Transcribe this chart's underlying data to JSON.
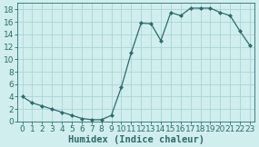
{
  "x": [
    0,
    1,
    2,
    3,
    4,
    5,
    6,
    7,
    8,
    9,
    10,
    11,
    12,
    13,
    14,
    15,
    16,
    17,
    18,
    19,
    20,
    21,
    22,
    23
  ],
  "y": [
    4,
    3,
    2.5,
    2,
    1.5,
    1,
    0.5,
    0.3,
    0.3,
    1,
    5.5,
    11,
    15.8,
    15.7,
    13,
    17.5,
    17,
    18.2,
    18.2,
    18.2,
    17.5,
    17,
    14.5,
    12.2
  ],
  "xlabel": "Humidex (Indice chaleur)",
  "ylabel": "",
  "xlim": [
    -0.5,
    23.5
  ],
  "ylim": [
    0,
    19
  ],
  "xticks": [
    0,
    1,
    2,
    3,
    4,
    5,
    6,
    7,
    8,
    9,
    10,
    11,
    12,
    13,
    14,
    15,
    16,
    17,
    18,
    19,
    20,
    21,
    22,
    23
  ],
  "yticks": [
    0,
    2,
    4,
    6,
    8,
    10,
    12,
    14,
    16,
    18
  ],
  "line_color": "#2e6b6b",
  "marker": "D",
  "marker_size": 2.0,
  "bg_color": "#d0eeee",
  "grid_color": "#aad4d4",
  "xlabel_fontsize": 7.5,
  "tick_fontsize": 6.5
}
